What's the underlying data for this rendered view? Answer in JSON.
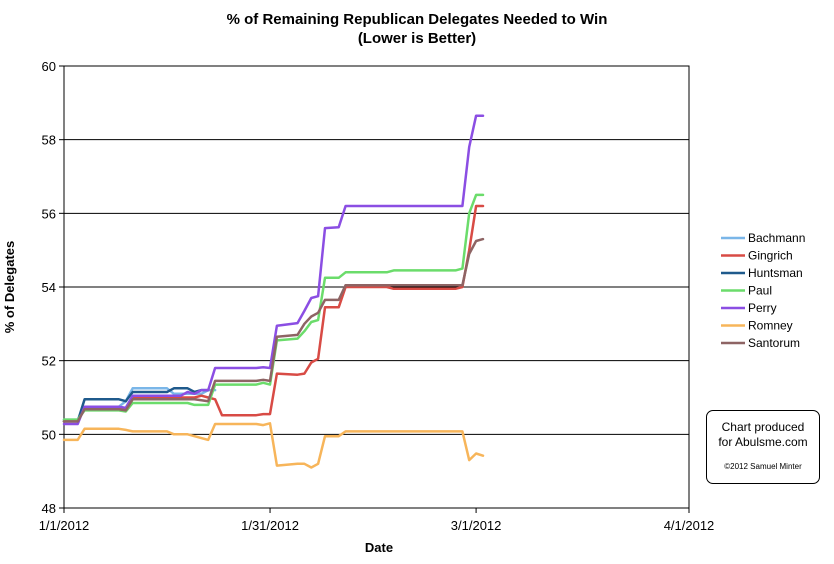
{
  "chart_data": {
    "type": "line",
    "title_line1": "% of Remaining Republican Delegates Needed to Win",
    "title_line2": "(Lower is Better)",
    "xlabel": "Date",
    "ylabel": "% of Delegates",
    "x_range": [
      "2012-01-01",
      "2012-04-01"
    ],
    "x_ticks": [
      "1/1/2012",
      "1/31/2012",
      "3/1/2012",
      "4/1/2012"
    ],
    "x_tick_dates": [
      "2012-01-01",
      "2012-01-31",
      "2012-03-01",
      "2012-04-01"
    ],
    "ylim": [
      48,
      60
    ],
    "y_ticks": [
      "48",
      "50",
      "52",
      "54",
      "56",
      "58",
      "60"
    ],
    "grid": "horizontal",
    "legend_position": "right",
    "series": [
      {
        "name": "Bachmann",
        "color": "#7ab6e8",
        "points": [
          [
            "2012-01-01",
            50.4
          ],
          [
            "2012-01-03",
            50.4
          ],
          [
            "2012-01-04",
            50.75
          ],
          [
            "2012-01-09",
            50.75
          ],
          [
            "2012-01-10",
            50.9
          ],
          [
            "2012-01-11",
            51.25
          ],
          [
            "2012-01-16",
            51.25
          ],
          [
            "2012-01-17",
            51.1
          ],
          [
            "2012-01-21",
            51.1
          ],
          [
            "2012-01-22",
            51.2
          ],
          [
            "2012-01-23",
            51.2
          ]
        ]
      },
      {
        "name": "Gingrich",
        "color": "#d84b45",
        "points": [
          [
            "2012-01-01",
            50.35
          ],
          [
            "2012-01-03",
            50.35
          ],
          [
            "2012-01-04",
            50.7
          ],
          [
            "2012-01-09",
            50.7
          ],
          [
            "2012-01-10",
            50.68
          ],
          [
            "2012-01-11",
            51.0
          ],
          [
            "2012-01-20",
            51.0
          ],
          [
            "2012-01-21",
            51.05
          ],
          [
            "2012-01-22",
            51.0
          ],
          [
            "2012-01-23",
            50.95
          ],
          [
            "2012-01-24",
            50.52
          ],
          [
            "2012-01-29",
            50.52
          ],
          [
            "2012-01-30",
            50.55
          ],
          [
            "2012-01-31",
            50.55
          ],
          [
            "2012-02-01",
            51.65
          ],
          [
            "2012-02-04",
            51.62
          ],
          [
            "2012-02-05",
            51.65
          ],
          [
            "2012-02-06",
            51.95
          ],
          [
            "2012-02-07",
            52.05
          ],
          [
            "2012-02-08",
            53.45
          ],
          [
            "2012-02-10",
            53.45
          ],
          [
            "2012-02-11",
            54.0
          ],
          [
            "2012-02-17",
            54.0
          ],
          [
            "2012-02-18",
            53.95
          ],
          [
            "2012-02-27",
            53.95
          ],
          [
            "2012-02-28",
            54.0
          ],
          [
            "2012-02-29",
            55.0
          ],
          [
            "2012-03-01",
            56.2
          ],
          [
            "2012-03-02",
            56.2
          ]
        ]
      },
      {
        "name": "Huntsman",
        "color": "#1f5a8c",
        "points": [
          [
            "2012-01-01",
            50.35
          ],
          [
            "2012-01-03",
            50.35
          ],
          [
            "2012-01-04",
            50.95
          ],
          [
            "2012-01-09",
            50.95
          ],
          [
            "2012-01-10",
            50.9
          ],
          [
            "2012-01-11",
            51.15
          ],
          [
            "2012-01-16",
            51.15
          ],
          [
            "2012-01-17",
            51.25
          ],
          [
            "2012-01-19",
            51.25
          ],
          [
            "2012-01-20",
            51.15
          ],
          [
            "2012-01-21",
            51.2
          ],
          [
            "2012-01-22",
            51.2
          ]
        ]
      },
      {
        "name": "Paul",
        "color": "#6bdc6b",
        "points": [
          [
            "2012-01-01",
            50.4
          ],
          [
            "2012-01-03",
            50.4
          ],
          [
            "2012-01-04",
            50.65
          ],
          [
            "2012-01-09",
            50.65
          ],
          [
            "2012-01-10",
            50.62
          ],
          [
            "2012-01-11",
            50.85
          ],
          [
            "2012-01-19",
            50.85
          ],
          [
            "2012-01-20",
            50.8
          ],
          [
            "2012-01-22",
            50.8
          ],
          [
            "2012-01-23",
            51.35
          ],
          [
            "2012-01-29",
            51.35
          ],
          [
            "2012-01-30",
            51.4
          ],
          [
            "2012-01-31",
            51.35
          ],
          [
            "2012-02-01",
            52.55
          ],
          [
            "2012-02-04",
            52.6
          ],
          [
            "2012-02-05",
            52.8
          ],
          [
            "2012-02-06",
            53.05
          ],
          [
            "2012-02-07",
            53.1
          ],
          [
            "2012-02-08",
            54.25
          ],
          [
            "2012-02-10",
            54.25
          ],
          [
            "2012-02-11",
            54.4
          ],
          [
            "2012-02-17",
            54.4
          ],
          [
            "2012-02-18",
            54.45
          ],
          [
            "2012-02-27",
            54.45
          ],
          [
            "2012-02-28",
            54.5
          ],
          [
            "2012-02-29",
            56.0
          ],
          [
            "2012-03-01",
            56.5
          ],
          [
            "2012-03-02",
            56.5
          ]
        ]
      },
      {
        "name": "Perry",
        "color": "#8b4ee3",
        "points": [
          [
            "2012-01-01",
            50.28
          ],
          [
            "2012-01-03",
            50.28
          ],
          [
            "2012-01-04",
            50.75
          ],
          [
            "2012-01-09",
            50.75
          ],
          [
            "2012-01-10",
            50.72
          ],
          [
            "2012-01-11",
            51.05
          ],
          [
            "2012-01-18",
            51.05
          ],
          [
            "2012-01-19",
            51.15
          ],
          [
            "2012-01-20",
            51.1
          ],
          [
            "2012-01-21",
            51.2
          ],
          [
            "2012-01-22",
            51.2
          ],
          [
            "2012-01-23",
            51.8
          ],
          [
            "2012-01-29",
            51.8
          ],
          [
            "2012-01-30",
            51.82
          ],
          [
            "2012-01-31",
            51.8
          ],
          [
            "2012-02-01",
            52.95
          ],
          [
            "2012-02-04",
            53.02
          ],
          [
            "2012-02-05",
            53.35
          ],
          [
            "2012-02-06",
            53.7
          ],
          [
            "2012-02-07",
            53.75
          ],
          [
            "2012-02-08",
            55.6
          ],
          [
            "2012-02-10",
            55.62
          ],
          [
            "2012-02-11",
            56.2
          ],
          [
            "2012-02-28",
            56.2
          ],
          [
            "2012-02-29",
            57.8
          ],
          [
            "2012-03-01",
            58.65
          ],
          [
            "2012-03-02",
            58.65
          ]
        ]
      },
      {
        "name": "Romney",
        "color": "#f7b55a",
        "points": [
          [
            "2012-01-01",
            49.85
          ],
          [
            "2012-01-03",
            49.85
          ],
          [
            "2012-01-04",
            50.15
          ],
          [
            "2012-01-09",
            50.15
          ],
          [
            "2012-01-10",
            50.12
          ],
          [
            "2012-01-11",
            50.08
          ],
          [
            "2012-01-16",
            50.08
          ],
          [
            "2012-01-17",
            50.0
          ],
          [
            "2012-01-19",
            50.0
          ],
          [
            "2012-01-20",
            49.95
          ],
          [
            "2012-01-22",
            49.85
          ],
          [
            "2012-01-23",
            50.28
          ],
          [
            "2012-01-29",
            50.28
          ],
          [
            "2012-01-30",
            50.25
          ],
          [
            "2012-01-31",
            50.3
          ],
          [
            "2012-02-01",
            49.15
          ],
          [
            "2012-02-04",
            49.2
          ],
          [
            "2012-02-05",
            49.2
          ],
          [
            "2012-02-06",
            49.1
          ],
          [
            "2012-02-07",
            49.2
          ],
          [
            "2012-02-08",
            49.95
          ],
          [
            "2012-02-10",
            49.95
          ],
          [
            "2012-02-11",
            50.08
          ],
          [
            "2012-02-28",
            50.08
          ],
          [
            "2012-02-29",
            49.3
          ],
          [
            "2012-03-01",
            49.48
          ],
          [
            "2012-03-02",
            49.42
          ]
        ]
      },
      {
        "name": "Santorum",
        "color": "#8e6464",
        "points": [
          [
            "2012-01-01",
            50.35
          ],
          [
            "2012-01-03",
            50.35
          ],
          [
            "2012-01-04",
            50.68
          ],
          [
            "2012-01-09",
            50.68
          ],
          [
            "2012-01-10",
            50.65
          ],
          [
            "2012-01-11",
            50.95
          ],
          [
            "2012-01-20",
            50.95
          ],
          [
            "2012-01-22",
            50.9
          ],
          [
            "2012-01-23",
            51.45
          ],
          [
            "2012-01-29",
            51.45
          ],
          [
            "2012-01-30",
            51.48
          ],
          [
            "2012-01-31",
            51.45
          ],
          [
            "2012-02-01",
            52.65
          ],
          [
            "2012-02-04",
            52.7
          ],
          [
            "2012-02-05",
            53.0
          ],
          [
            "2012-02-06",
            53.2
          ],
          [
            "2012-02-07",
            53.3
          ],
          [
            "2012-02-08",
            53.65
          ],
          [
            "2012-02-10",
            53.65
          ],
          [
            "2012-02-11",
            54.05
          ],
          [
            "2012-02-28",
            54.05
          ],
          [
            "2012-02-29",
            54.9
          ],
          [
            "2012-03-01",
            55.25
          ],
          [
            "2012-03-02",
            55.3
          ]
        ]
      }
    ]
  },
  "credit": {
    "line1": "Chart produced",
    "line2": "for Abulsme.com",
    "copyright": "©2012 Samuel Minter"
  }
}
